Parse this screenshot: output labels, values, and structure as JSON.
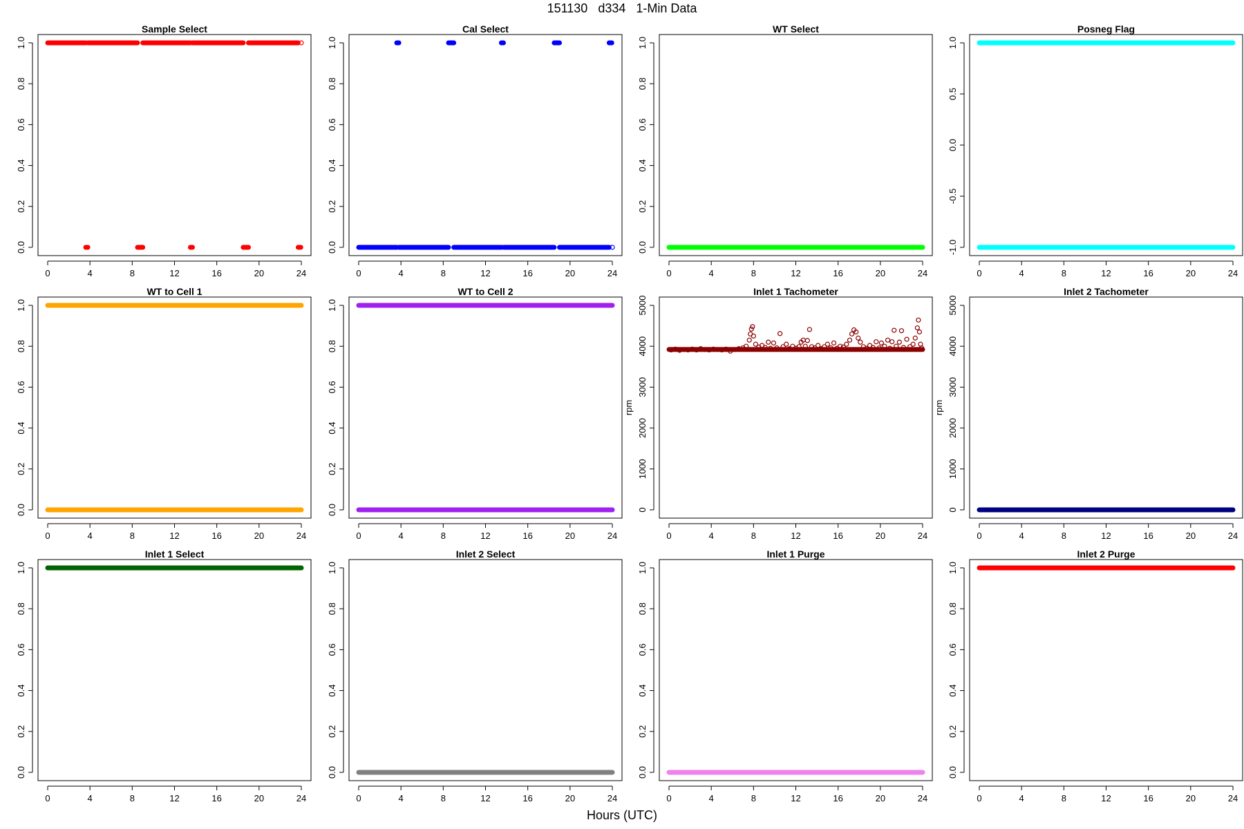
{
  "figure": {
    "title": "151130   d334   1-Min Data",
    "xlabel": "Hours (UTC)"
  },
  "chart_data": [
    {
      "type": "scatter",
      "title": "Sample Select",
      "color": "#ff0000",
      "xlabel": "",
      "ylabel": "",
      "xlim": [
        0,
        24
      ],
      "ylim": [
        0,
        1
      ],
      "xticks": [
        0,
        4,
        8,
        12,
        16,
        20,
        24
      ],
      "yticks": [
        0,
        0.2,
        0.4,
        0.6,
        0.8,
        1
      ],
      "ytick_labels": [
        "0.0",
        "0.2",
        "0.4",
        "0.6",
        "0.8",
        "1.0"
      ],
      "segments": [
        {
          "y": 1,
          "x": [
            0,
            3.6
          ]
        },
        {
          "y": 1,
          "x": [
            3.8,
            8.5
          ]
        },
        {
          "y": 1,
          "x": [
            9.0,
            13.5
          ]
        },
        {
          "y": 1,
          "x": [
            13.7,
            18.5
          ]
        },
        {
          "y": 1,
          "x": [
            19.0,
            23.7
          ]
        },
        {
          "y": 0,
          "x": [
            3.6,
            3.8
          ]
        },
        {
          "y": 0,
          "x": [
            8.5,
            9.0
          ]
        },
        {
          "y": 0,
          "x": [
            13.5,
            13.7
          ]
        },
        {
          "y": 0,
          "x": [
            18.5,
            19.0
          ]
        },
        {
          "y": 0,
          "x": [
            23.7,
            23.95
          ]
        }
      ],
      "points": [
        {
          "x": 24,
          "y": 1
        }
      ]
    },
    {
      "type": "scatter",
      "title": "Cal Select",
      "color": "#0000ff",
      "xlabel": "",
      "ylabel": "",
      "xlim": [
        0,
        24
      ],
      "ylim": [
        0,
        1
      ],
      "xticks": [
        0,
        4,
        8,
        12,
        16,
        20,
        24
      ],
      "yticks": [
        0,
        0.2,
        0.4,
        0.6,
        0.8,
        1
      ],
      "ytick_labels": [
        "0.0",
        "0.2",
        "0.4",
        "0.6",
        "0.8",
        "1.0"
      ],
      "segments": [
        {
          "y": 0,
          "x": [
            0,
            3.6
          ]
        },
        {
          "y": 0,
          "x": [
            3.8,
            8.5
          ]
        },
        {
          "y": 0,
          "x": [
            9.0,
            13.5
          ]
        },
        {
          "y": 0,
          "x": [
            13.7,
            18.5
          ]
        },
        {
          "y": 0,
          "x": [
            19.0,
            23.7
          ]
        },
        {
          "y": 1,
          "x": [
            3.6,
            3.8
          ]
        },
        {
          "y": 1,
          "x": [
            8.5,
            9.0
          ]
        },
        {
          "y": 1,
          "x": [
            13.5,
            13.7
          ]
        },
        {
          "y": 1,
          "x": [
            18.5,
            19.0
          ]
        },
        {
          "y": 1,
          "x": [
            23.7,
            23.95
          ]
        }
      ],
      "points": [
        {
          "x": 24,
          "y": 0
        }
      ]
    },
    {
      "type": "scatter",
      "title": "WT Select",
      "color": "#00ff00",
      "xlabel": "",
      "ylabel": "",
      "xlim": [
        0,
        24
      ],
      "ylim": [
        0,
        1
      ],
      "xticks": [
        0,
        4,
        8,
        12,
        16,
        20,
        24
      ],
      "yticks": [
        0,
        0.2,
        0.4,
        0.6,
        0.8,
        1
      ],
      "ytick_labels": [
        "0.0",
        "0.2",
        "0.4",
        "0.6",
        "0.8",
        "1.0"
      ],
      "segments": [
        {
          "y": 0,
          "x": [
            0,
            24
          ]
        }
      ],
      "points": []
    },
    {
      "type": "scatter",
      "title": "Posneg Flag",
      "color": "#00ffff",
      "xlabel": "",
      "ylabel": "",
      "xlim": [
        0,
        24
      ],
      "ylim": [
        -1,
        1
      ],
      "xticks": [
        0,
        4,
        8,
        12,
        16,
        20,
        24
      ],
      "yticks": [
        -1,
        -0.5,
        0,
        0.5,
        1
      ],
      "ytick_labels": [
        "-1.0",
        "-0.5",
        "0.0",
        "0.5",
        "1.0"
      ],
      "segments": [
        {
          "y": 1,
          "x": [
            0,
            24
          ]
        },
        {
          "y": -1,
          "x": [
            0,
            24
          ]
        }
      ],
      "points": []
    },
    {
      "type": "scatter",
      "title": "WT to Cell 1",
      "color": "#ffa500",
      "xlabel": "",
      "ylabel": "",
      "xlim": [
        0,
        24
      ],
      "ylim": [
        0,
        1
      ],
      "xticks": [
        0,
        4,
        8,
        12,
        16,
        20,
        24
      ],
      "yticks": [
        0,
        0.2,
        0.4,
        0.6,
        0.8,
        1
      ],
      "ytick_labels": [
        "0.0",
        "0.2",
        "0.4",
        "0.6",
        "0.8",
        "1.0"
      ],
      "segments": [
        {
          "y": 1,
          "x": [
            0,
            24
          ]
        },
        {
          "y": 0,
          "x": [
            0,
            24
          ]
        }
      ],
      "points": []
    },
    {
      "type": "scatter",
      "title": "WT to Cell 2",
      "color": "#a020f0",
      "xlabel": "",
      "ylabel": "",
      "xlim": [
        0,
        24
      ],
      "ylim": [
        0,
        1
      ],
      "xticks": [
        0,
        4,
        8,
        12,
        16,
        20,
        24
      ],
      "yticks": [
        0,
        0.2,
        0.4,
        0.6,
        0.8,
        1
      ],
      "ytick_labels": [
        "0.0",
        "0.2",
        "0.4",
        "0.6",
        "0.8",
        "1.0"
      ],
      "segments": [
        {
          "y": 1,
          "x": [
            0,
            24
          ]
        },
        {
          "y": 0,
          "x": [
            0,
            24
          ]
        }
      ],
      "points": []
    },
    {
      "type": "scatter",
      "title": "Inlet 1 Tachometer",
      "color": "#8b0000",
      "xlabel": "",
      "ylabel": "rpm",
      "xlim": [
        0,
        24
      ],
      "ylim": [
        0,
        5000
      ],
      "xticks": [
        0,
        4,
        8,
        12,
        16,
        20,
        24
      ],
      "yticks": [
        0,
        1000,
        2000,
        3000,
        4000,
        5000
      ],
      "ytick_labels": [
        "0",
        "1000",
        "2000",
        "3000",
        "4000",
        "5000"
      ],
      "segments": [],
      "points": [
        {
          "x": 0.2,
          "y": 3910
        },
        {
          "x": 0.6,
          "y": 3930
        },
        {
          "x": 1.0,
          "y": 3900
        },
        {
          "x": 1.4,
          "y": 3920
        },
        {
          "x": 1.8,
          "y": 3910
        },
        {
          "x": 2.2,
          "y": 3930
        },
        {
          "x": 2.6,
          "y": 3910
        },
        {
          "x": 3.0,
          "y": 3940
        },
        {
          "x": 3.4,
          "y": 3920
        },
        {
          "x": 3.8,
          "y": 3910
        },
        {
          "x": 4.2,
          "y": 3930
        },
        {
          "x": 4.6,
          "y": 3920
        },
        {
          "x": 5.0,
          "y": 3910
        },
        {
          "x": 5.4,
          "y": 3930
        },
        {
          "x": 5.8,
          "y": 3880
        },
        {
          "x": 6.2,
          "y": 3920
        },
        {
          "x": 6.6,
          "y": 3940
        },
        {
          "x": 7.0,
          "y": 3960
        },
        {
          "x": 7.3,
          "y": 4000
        },
        {
          "x": 7.6,
          "y": 4150
        },
        {
          "x": 7.7,
          "y": 4300
        },
        {
          "x": 7.8,
          "y": 4420
        },
        {
          "x": 7.9,
          "y": 4480
        },
        {
          "x": 8.0,
          "y": 4250
        },
        {
          "x": 8.2,
          "y": 4050
        },
        {
          "x": 8.5,
          "y": 3980
        },
        {
          "x": 8.8,
          "y": 4020
        },
        {
          "x": 9.1,
          "y": 3970
        },
        {
          "x": 9.4,
          "y": 4100
        },
        {
          "x": 9.6,
          "y": 3950
        },
        {
          "x": 9.9,
          "y": 4080
        },
        {
          "x": 10.2,
          "y": 3960
        },
        {
          "x": 10.5,
          "y": 4310
        },
        {
          "x": 10.8,
          "y": 3990
        },
        {
          "x": 11.1,
          "y": 4050
        },
        {
          "x": 11.4,
          "y": 3940
        },
        {
          "x": 11.7,
          "y": 4000
        },
        {
          "x": 12.0,
          "y": 3950
        },
        {
          "x": 12.3,
          "y": 3990
        },
        {
          "x": 12.5,
          "y": 4100
        },
        {
          "x": 12.7,
          "y": 4150
        },
        {
          "x": 12.9,
          "y": 4000
        },
        {
          "x": 13.1,
          "y": 4140
        },
        {
          "x": 13.3,
          "y": 4410
        },
        {
          "x": 13.5,
          "y": 3990
        },
        {
          "x": 13.8,
          "y": 3960
        },
        {
          "x": 14.1,
          "y": 4020
        },
        {
          "x": 14.4,
          "y": 3940
        },
        {
          "x": 14.7,
          "y": 3990
        },
        {
          "x": 15.0,
          "y": 4050
        },
        {
          "x": 15.3,
          "y": 3960
        },
        {
          "x": 15.6,
          "y": 4080
        },
        {
          "x": 15.9,
          "y": 3950
        },
        {
          "x": 16.2,
          "y": 4000
        },
        {
          "x": 16.5,
          "y": 3980
        },
        {
          "x": 16.8,
          "y": 4050
        },
        {
          "x": 17.1,
          "y": 4150
        },
        {
          "x": 17.3,
          "y": 4300
        },
        {
          "x": 17.5,
          "y": 4400
        },
        {
          "x": 17.7,
          "y": 4350
        },
        {
          "x": 17.9,
          "y": 4200
        },
        {
          "x": 18.1,
          "y": 4100
        },
        {
          "x": 18.4,
          "y": 3990
        },
        {
          "x": 18.7,
          "y": 3950
        },
        {
          "x": 19.0,
          "y": 4020
        },
        {
          "x": 19.3,
          "y": 3970
        },
        {
          "x": 19.6,
          "y": 4110
        },
        {
          "x": 19.9,
          "y": 3960
        },
        {
          "x": 20.1,
          "y": 4080
        },
        {
          "x": 20.4,
          "y": 4000
        },
        {
          "x": 20.7,
          "y": 4150
        },
        {
          "x": 20.9,
          "y": 3950
        },
        {
          "x": 21.1,
          "y": 4110
        },
        {
          "x": 21.3,
          "y": 4390
        },
        {
          "x": 21.5,
          "y": 4000
        },
        {
          "x": 21.8,
          "y": 4100
        },
        {
          "x": 22.0,
          "y": 4380
        },
        {
          "x": 22.2,
          "y": 3970
        },
        {
          "x": 22.5,
          "y": 4170
        },
        {
          "x": 22.8,
          "y": 3990
        },
        {
          "x": 23.1,
          "y": 4050
        },
        {
          "x": 23.3,
          "y": 4200
        },
        {
          "x": 23.5,
          "y": 4450
        },
        {
          "x": 23.6,
          "y": 4640
        },
        {
          "x": 23.7,
          "y": 4350
        },
        {
          "x": 23.8,
          "y": 4050
        },
        {
          "x": 23.9,
          "y": 3960
        }
      ],
      "baseline": {
        "y": 3920,
        "x": [
          0,
          24
        ]
      }
    },
    {
      "type": "scatter",
      "title": "Inlet 2 Tachometer",
      "color": "#000080",
      "xlabel": "",
      "ylabel": "rpm",
      "xlim": [
        0,
        24
      ],
      "ylim": [
        0,
        5000
      ],
      "xticks": [
        0,
        4,
        8,
        12,
        16,
        20,
        24
      ],
      "yticks": [
        0,
        1000,
        2000,
        3000,
        4000,
        5000
      ],
      "ytick_labels": [
        "0",
        "1000",
        "2000",
        "3000",
        "4000",
        "5000"
      ],
      "segments": [
        {
          "y": 0,
          "x": [
            0,
            24
          ]
        }
      ],
      "points": []
    },
    {
      "type": "scatter",
      "title": "Inlet 1 Select",
      "color": "#006400",
      "xlabel": "",
      "ylabel": "",
      "xlim": [
        0,
        24
      ],
      "ylim": [
        0,
        1
      ],
      "xticks": [
        0,
        4,
        8,
        12,
        16,
        20,
        24
      ],
      "yticks": [
        0,
        0.2,
        0.4,
        0.6,
        0.8,
        1
      ],
      "ytick_labels": [
        "0.0",
        "0.2",
        "0.4",
        "0.6",
        "0.8",
        "1.0"
      ],
      "segments": [
        {
          "y": 1,
          "x": [
            0,
            24
          ]
        }
      ],
      "points": []
    },
    {
      "type": "scatter",
      "title": "Inlet 2 Select",
      "color": "#808080",
      "xlabel": "",
      "ylabel": "",
      "xlim": [
        0,
        24
      ],
      "ylim": [
        0,
        1
      ],
      "xticks": [
        0,
        4,
        8,
        12,
        16,
        20,
        24
      ],
      "yticks": [
        0,
        0.2,
        0.4,
        0.6,
        0.8,
        1
      ],
      "ytick_labels": [
        "0.0",
        "0.2",
        "0.4",
        "0.6",
        "0.8",
        "1.0"
      ],
      "segments": [
        {
          "y": 0,
          "x": [
            0,
            24
          ]
        }
      ],
      "points": []
    },
    {
      "type": "scatter",
      "title": "Inlet 1 Purge",
      "color": "#ee82ee",
      "xlabel": "",
      "ylabel": "",
      "xlim": [
        0,
        24
      ],
      "ylim": [
        0,
        1
      ],
      "xticks": [
        0,
        4,
        8,
        12,
        16,
        20,
        24
      ],
      "yticks": [
        0,
        0.2,
        0.4,
        0.6,
        0.8,
        1
      ],
      "ytick_labels": [
        "0.0",
        "0.2",
        "0.4",
        "0.6",
        "0.8",
        "1.0"
      ],
      "segments": [
        {
          "y": 0,
          "x": [
            0,
            24
          ]
        }
      ],
      "points": []
    },
    {
      "type": "scatter",
      "title": "Inlet 2 Purge",
      "color": "#ff0000",
      "xlabel": "",
      "ylabel": "",
      "xlim": [
        0,
        24
      ],
      "ylim": [
        0,
        1
      ],
      "xticks": [
        0,
        4,
        8,
        12,
        16,
        20,
        24
      ],
      "yticks": [
        0,
        0.2,
        0.4,
        0.6,
        0.8,
        1
      ],
      "ytick_labels": [
        "0.0",
        "0.2",
        "0.4",
        "0.6",
        "0.8",
        "1.0"
      ],
      "segments": [
        {
          "y": 1,
          "x": [
            0,
            24
          ]
        }
      ],
      "points": []
    }
  ]
}
